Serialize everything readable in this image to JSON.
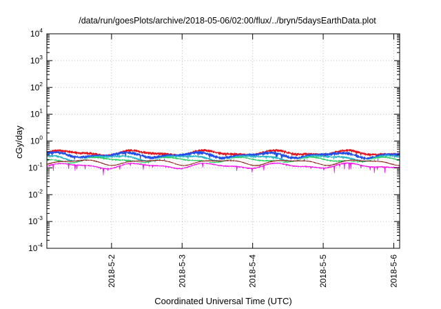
{
  "chart_data": {
    "type": "line",
    "title": "/data/run/goesPlots/archive/2018-05-06/02:00/flux/../bryn/5daysEarthData.plot",
    "xlabel": "Coordinated Universal Time (UTC)",
    "ylabel": "cGy/day",
    "y_scale": "log",
    "ylim": [
      0.0001,
      10000
    ],
    "y_ticks": [
      {
        "base": "10",
        "exp": "-4",
        "value": 0.0001
      },
      {
        "base": "10",
        "exp": "-3",
        "value": 0.001
      },
      {
        "base": "10",
        "exp": "-2",
        "value": 0.01
      },
      {
        "base": "10",
        "exp": "-1",
        "value": 0.1
      },
      {
        "base": "10",
        "exp": "0",
        "value": 1
      },
      {
        "base": "10",
        "exp": "1",
        "value": 10
      },
      {
        "base": "10",
        "exp": "2",
        "value": 100
      },
      {
        "base": "10",
        "exp": "3",
        "value": 1000
      },
      {
        "base": "10",
        "exp": "4",
        "value": 10000
      }
    ],
    "x_range": [
      "2018-05-01T02:00",
      "2018-05-06T02:00"
    ],
    "x_ticks": [
      "2018-5-2",
      "2018-5-3",
      "2018-5-4",
      "2018-5-5",
      "2018-5-6"
    ],
    "grid": true,
    "series": [
      {
        "color": "#e8141c",
        "base": 0.36,
        "spread": 0.12,
        "noise": 0.1
      },
      {
        "color": "#1f4ef0",
        "base": 0.3,
        "spread": 0.14,
        "noise": 0.16
      },
      {
        "color": "#2eb8c8",
        "base": 0.24,
        "spread": 0.09,
        "noise": 0.1
      },
      {
        "color": "#24d060",
        "base": 0.2,
        "spread": 0.06,
        "noise": 0.06
      },
      {
        "color": "#f2f2f2",
        "base": 0.18,
        "spread": 0.03,
        "noise": 0.03
      },
      {
        "color": "#8b1a10",
        "base": 0.165,
        "spread": 0.03,
        "noise": 0.03
      },
      {
        "color": "#ff10f0",
        "base": 0.12,
        "spread": 0.05,
        "noise": 0.22
      }
    ]
  }
}
